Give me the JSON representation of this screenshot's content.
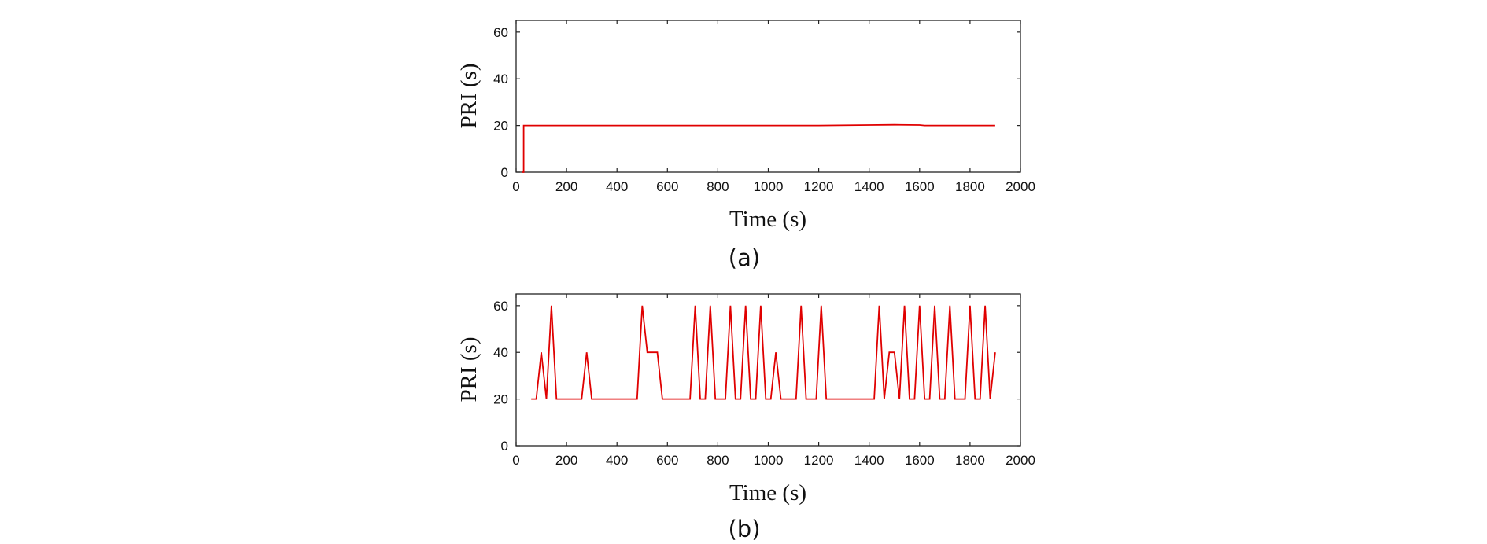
{
  "chart_data": [
    {
      "type": "line",
      "caption": "(a)",
      "xlabel": "Time (s)",
      "ylabel": "PRI (s)",
      "xlim": [
        0,
        2000
      ],
      "ylim": [
        0,
        65
      ],
      "xticks": [
        0,
        200,
        400,
        600,
        800,
        1000,
        1200,
        1400,
        1600,
        1800,
        2000
      ],
      "yticks": [
        0,
        20,
        40,
        60
      ],
      "color": "#e00000",
      "series": [
        {
          "name": "PRI",
          "x": [
            25,
            25,
            30,
            30,
            200,
            400,
            600,
            800,
            1000,
            1200,
            1400,
            1500,
            1600,
            1620,
            1630,
            1800,
            1900
          ],
          "y": [
            0,
            0,
            0,
            20,
            20,
            20,
            20,
            20,
            20,
            20,
            20.2,
            20.3,
            20.2,
            20,
            20,
            20,
            20
          ]
        }
      ]
    },
    {
      "type": "line",
      "caption": "(b)",
      "xlabel": "Time (s)",
      "ylabel": "PRI (s)",
      "xlim": [
        0,
        2000
      ],
      "ylim": [
        0,
        65
      ],
      "xticks": [
        0,
        200,
        400,
        600,
        800,
        1000,
        1200,
        1400,
        1600,
        1800,
        2000
      ],
      "yticks": [
        0,
        20,
        40,
        60
      ],
      "color": "#e00000",
      "series": [
        {
          "name": "PRI",
          "x": [
            60,
            80,
            100,
            120,
            140,
            160,
            200,
            260,
            280,
            300,
            320,
            400,
            480,
            500,
            520,
            540,
            560,
            580,
            620,
            690,
            710,
            730,
            750,
            770,
            790,
            810,
            830,
            850,
            870,
            890,
            910,
            930,
            950,
            970,
            990,
            1010,
            1030,
            1050,
            1070,
            1110,
            1130,
            1150,
            1170,
            1190,
            1210,
            1230,
            1290,
            1420,
            1440,
            1460,
            1480,
            1500,
            1520,
            1540,
            1560,
            1580,
            1600,
            1620,
            1640,
            1660,
            1680,
            1700,
            1720,
            1740,
            1760,
            1780,
            1800,
            1820,
            1840,
            1860,
            1880,
            1900
          ],
          "y": [
            20,
            20,
            40,
            20,
            60,
            20,
            20,
            20,
            40,
            20,
            20,
            20,
            20,
            60,
            40,
            40,
            40,
            20,
            20,
            20,
            60,
            20,
            20,
            60,
            20,
            20,
            20,
            60,
            20,
            20,
            60,
            20,
            20,
            60,
            20,
            20,
            40,
            20,
            20,
            20,
            60,
            20,
            20,
            20,
            60,
            20,
            20,
            20,
            60,
            20,
            40,
            40,
            20,
            60,
            20,
            20,
            60,
            20,
            20,
            60,
            20,
            20,
            60,
            20,
            20,
            20,
            60,
            20,
            20,
            60,
            20,
            40
          ]
        }
      ]
    }
  ]
}
